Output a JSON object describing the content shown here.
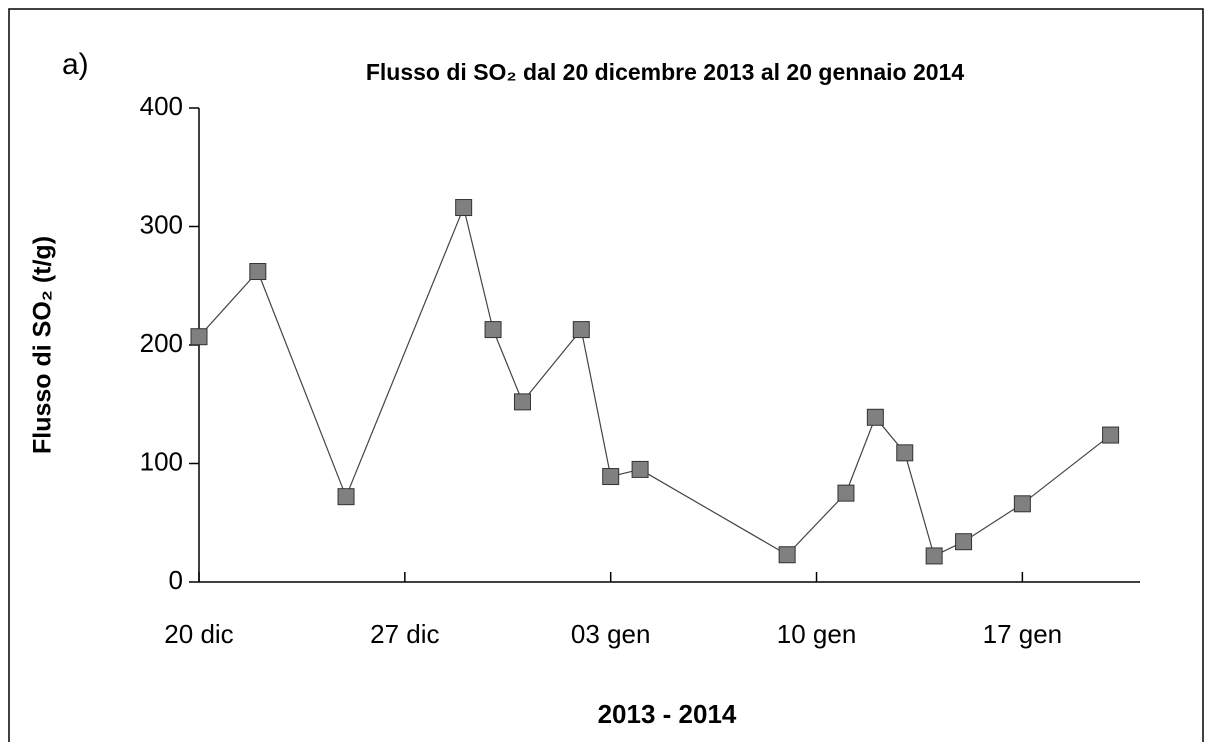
{
  "chart_data": {
    "type": "line",
    "panel_label": "a)",
    "title": "Flusso di SO₂ dal 20 dicembre 2013 al 20 gennaio 2014",
    "y_label": "Flusso di SO₂  (t/g)",
    "x_label": "2013 - 2014",
    "x": [
      "2013-12-20",
      "2013-12-22",
      "2013-12-25",
      "2013-12-29",
      "2013-12-30",
      "2013-12-31",
      "2014-01-02",
      "2014-01-03",
      "2014-01-04",
      "2014-01-09",
      "2014-01-11",
      "2014-01-12",
      "2014-01-13",
      "2014-01-14",
      "2014-01-15",
      "2014-01-17",
      "2014-01-20"
    ],
    "series": [
      {
        "color": "#808080",
        "values": [
          207,
          262,
          72,
          316,
          213,
          152,
          213,
          89,
          95,
          23,
          75,
          139,
          109,
          22,
          34,
          66,
          124
        ]
      }
    ],
    "xlim": [
      "2013-12-20",
      "2014-01-21"
    ],
    "xticks": [
      {
        "value": "2013-12-20",
        "label": "20 dic"
      },
      {
        "value": "2013-12-27",
        "label": "27 dic"
      },
      {
        "value": "2014-01-03",
        "label": "03 gen"
      },
      {
        "value": "2014-01-10",
        "label": "10 gen"
      },
      {
        "value": "2014-01-17",
        "label": "17 gen"
      }
    ],
    "ylim": [
      0,
      400
    ],
    "yticks": [
      0,
      100,
      200,
      300,
      400
    ],
    "grid": false
  }
}
